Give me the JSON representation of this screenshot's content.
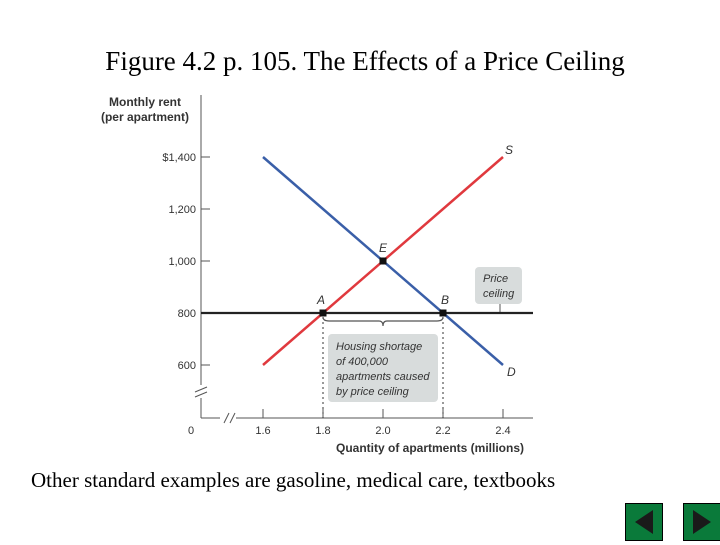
{
  "slide": {
    "title": "Figure 4.2 p. 105. The Effects of a Price Ceiling",
    "footer": "Other standard examples are gasoline, medical care, textbooks"
  },
  "nav": {
    "prev_icon": "triangle-left-icon",
    "next_icon": "triangle-right-icon",
    "button_color": "#0a7a3a"
  },
  "chart_data": {
    "type": "line",
    "ylabel_lines": [
      "Monthly rent",
      "(per apartment)"
    ],
    "xlabel": "Quantity of apartments (millions)",
    "x_ticks": [
      {
        "value": 1.6,
        "label": "1.6"
      },
      {
        "value": 1.8,
        "label": "1.8"
      },
      {
        "value": 2.0,
        "label": "2.0"
      },
      {
        "value": 2.2,
        "label": "2.2"
      },
      {
        "value": 2.4,
        "label": "2.4"
      }
    ],
    "y_ticks": [
      {
        "value": 600,
        "label": "600"
      },
      {
        "value": 800,
        "label": "800"
      },
      {
        "value": 1000,
        "label": "1,000"
      },
      {
        "value": 1200,
        "label": "1,200"
      },
      {
        "value": 1400,
        "label": "$1,400"
      }
    ],
    "origin_label": "0",
    "axis_break": true,
    "series": [
      {
        "name": "S",
        "color": "#e0393e",
        "x": [
          1.6,
          2.4
        ],
        "y": [
          600,
          1400
        ]
      },
      {
        "name": "D",
        "color": "#3a5fa8",
        "x": [
          1.6,
          2.4
        ],
        "y": [
          1400,
          600
        ]
      }
    ],
    "price_ceiling": {
      "y": 800,
      "color": "#222222",
      "label_lines": [
        "Price",
        "ceiling"
      ]
    },
    "points": [
      {
        "label": "E",
        "x": 2.0,
        "y": 1000
      },
      {
        "label": "A",
        "x": 1.8,
        "y": 800
      },
      {
        "label": "B",
        "x": 2.2,
        "y": 800
      }
    ],
    "annotation": {
      "lines": [
        "Housing shortage",
        "of 400,000",
        "apartments caused",
        "by price ceiling"
      ],
      "from_x": 1.8,
      "to_x": 2.2
    },
    "annotation_bg": "#d8dcdc"
  }
}
